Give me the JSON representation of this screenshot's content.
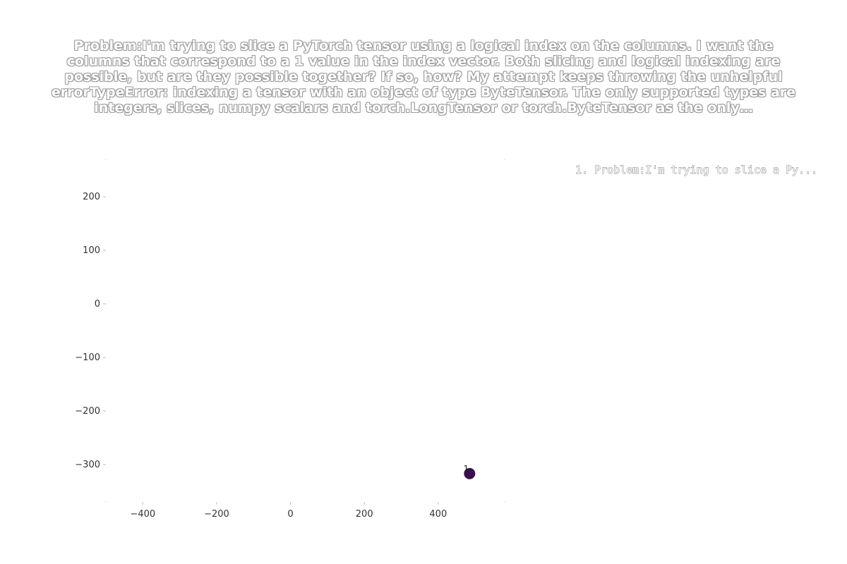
{
  "chart_data": {
    "type": "scatter",
    "title": "Problem:I'm trying to slice a PyTorch tensor using a logical index on the columns. I want the columns that correspond to a 1 value in the index vector. Both slicing and logical indexing are possible, but are they possible together? If so, how? My attempt keeps throwing the unhelpful errorTypeError: indexing a tensor with an object of type ByteTensor. The only supported types are integers, slices, numpy scalars and torch.LongTensor or torch.ByteTensor as the only…",
    "xlabel": "",
    "ylabel": "",
    "xlim": [
      -500,
      580
    ],
    "ylim": [
      -370,
      270
    ],
    "xticks": [
      -400,
      -200,
      0,
      200,
      400
    ],
    "xtick_labels": [
      "−400",
      "−200",
      "0",
      "200",
      "400"
    ],
    "yticks": [
      200,
      100,
      0,
      -100,
      -200,
      -300
    ],
    "ytick_labels": [
      "200",
      "100",
      "0",
      "−100",
      "−200",
      "−300"
    ],
    "grid": false,
    "legend": {
      "placement": "top-right",
      "entries": [
        "1. Problem:I'm trying to slice a Py..."
      ]
    },
    "points": [
      {
        "label": "1",
        "x": 485,
        "y": -317,
        "color": "#3b0f4f"
      }
    ]
  }
}
